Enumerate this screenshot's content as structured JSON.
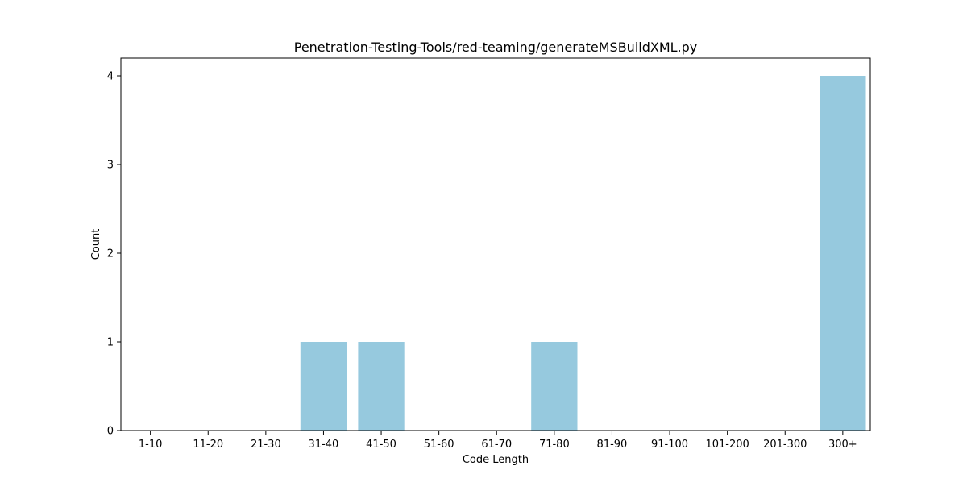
{
  "chart_data": {
    "type": "bar",
    "title": "Penetration-Testing-Tools/red-teaming/generateMSBuildXML.py",
    "xlabel": "Code Length",
    "ylabel": "Count",
    "categories": [
      "1-10",
      "11-20",
      "21-30",
      "31-40",
      "41-50",
      "51-60",
      "61-70",
      "71-80",
      "81-90",
      "91-100",
      "101-200",
      "201-300",
      "300+"
    ],
    "values": [
      0,
      0,
      0,
      1,
      1,
      0,
      0,
      1,
      0,
      0,
      0,
      0,
      4
    ],
    "yticks": [
      0,
      1,
      2,
      3,
      4
    ],
    "ylim": [
      0,
      4.2
    ],
    "grid": false,
    "colors": {
      "bar": "#96c9de",
      "axis": "#000000",
      "background": "#ffffff"
    }
  }
}
